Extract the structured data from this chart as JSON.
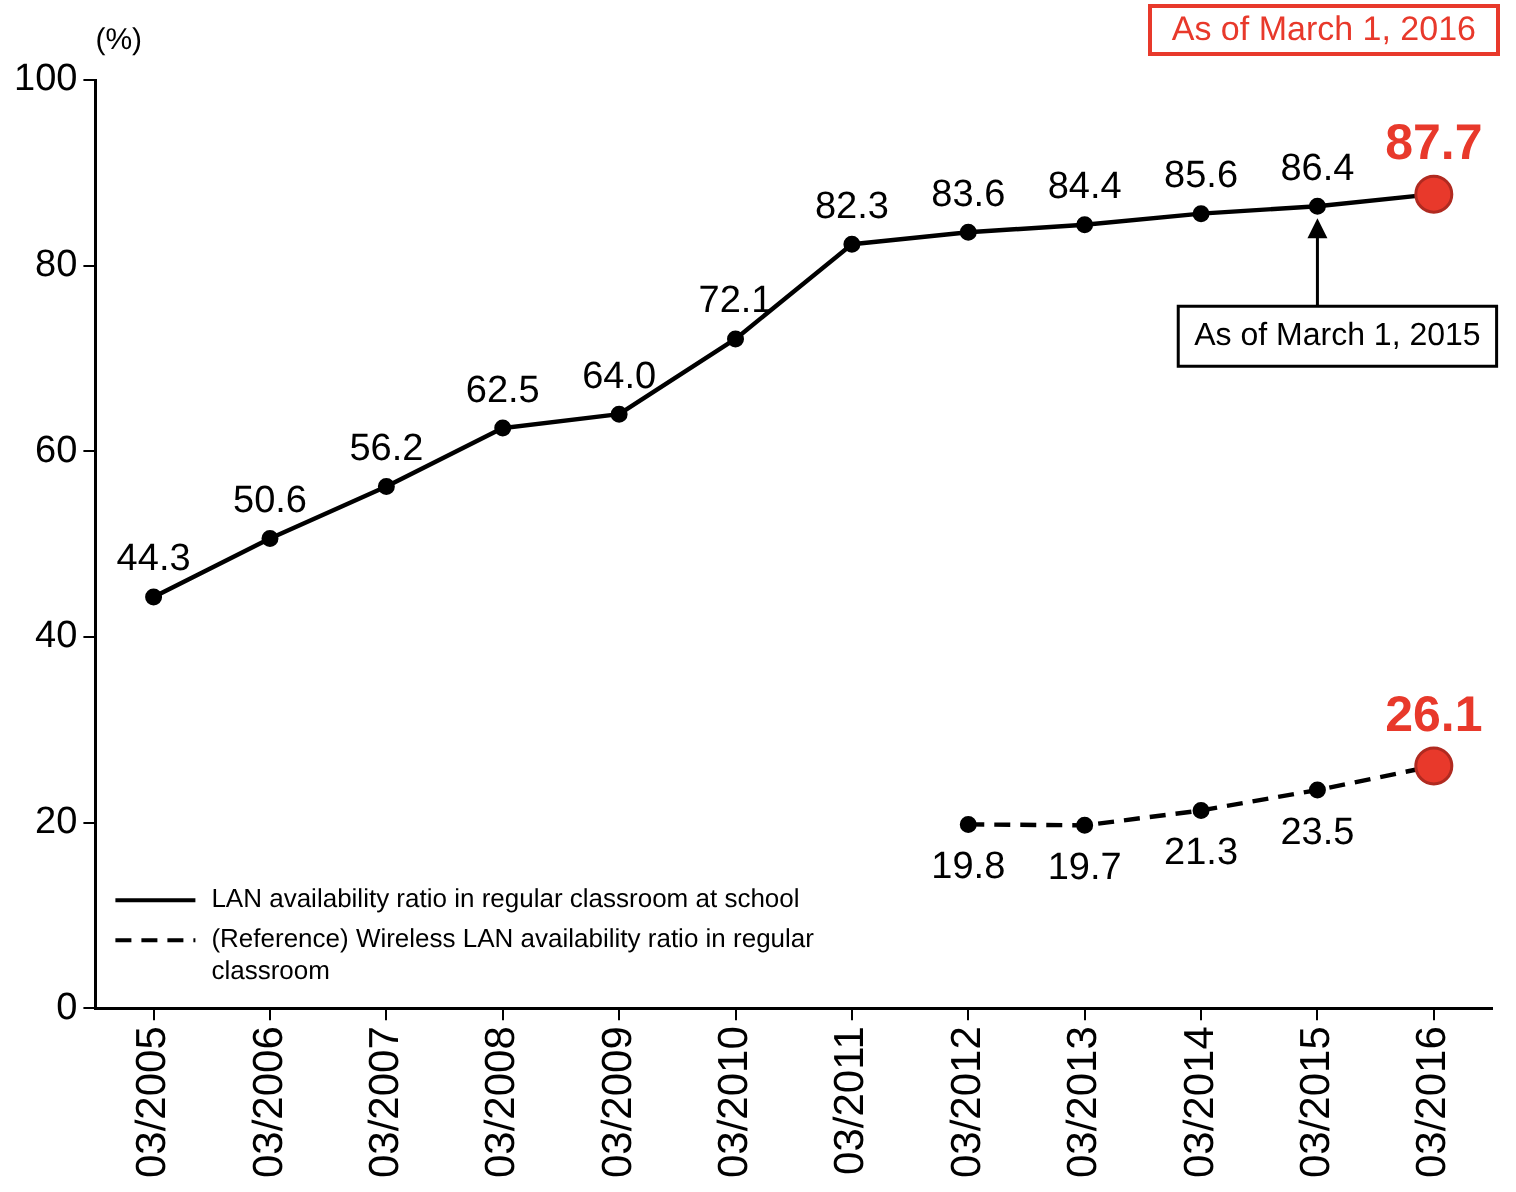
{
  "chart_data": {
    "type": "line",
    "ylabel": "(%)",
    "categories": [
      "03/2005",
      "03/2006",
      "03/2007",
      "03/2008",
      "03/2009",
      "03/2010",
      "03/2011",
      "03/2012",
      "03/2013",
      "03/2014",
      "03/2015",
      "03/2016"
    ],
    "series": [
      {
        "name": "LAN availability ratio in regular classroom at school",
        "color": "#000000",
        "line_style": "solid",
        "values": [
          44.3,
          50.6,
          56.2,
          62.5,
          64.0,
          72.1,
          82.3,
          83.6,
          84.4,
          85.6,
          86.4,
          87.7
        ],
        "colors": [
          "#000000",
          "#000000",
          "#000000",
          "#000000",
          "#000000",
          "#000000",
          "#000000",
          "#000000",
          "#000000",
          "#000000",
          "#000000",
          "#e8392b"
        ],
        "value_labels": [
          "44.3",
          "50.6",
          "56.2",
          "62.5",
          "64.0",
          "72.1",
          "82.3",
          "83.6",
          "84.4",
          "85.6",
          "86.4",
          "87.7"
        ]
      },
      {
        "name": "(Reference) Wireless LAN availability ratio in regular classroom",
        "color": "#000000",
        "line_style": "dashed",
        "values": [
          null,
          null,
          null,
          null,
          null,
          null,
          null,
          19.8,
          19.7,
          21.3,
          23.5,
          26.1
        ],
        "colors": [
          "#000000",
          "#000000",
          "#000000",
          "#000000",
          "#000000",
          "#000000",
          "#000000",
          "#000000",
          "#000000",
          "#000000",
          "#000000",
          "#e8392b"
        ],
        "value_labels": [
          null,
          null,
          null,
          null,
          null,
          null,
          null,
          "19.8",
          "19.7",
          "21.3",
          "23.5",
          "26.1"
        ]
      }
    ],
    "ylim": [
      0,
      100
    ],
    "yticks": [
      0,
      20,
      40,
      60,
      80,
      100
    ],
    "grid": false,
    "legend": "bottom left",
    "marker": "circle",
    "annotations": [
      "As of March 1, 2016",
      {
        "text": "As of March 1, 2015",
        "x": "03/2015",
        "y": 86.4
      }
    ]
  }
}
